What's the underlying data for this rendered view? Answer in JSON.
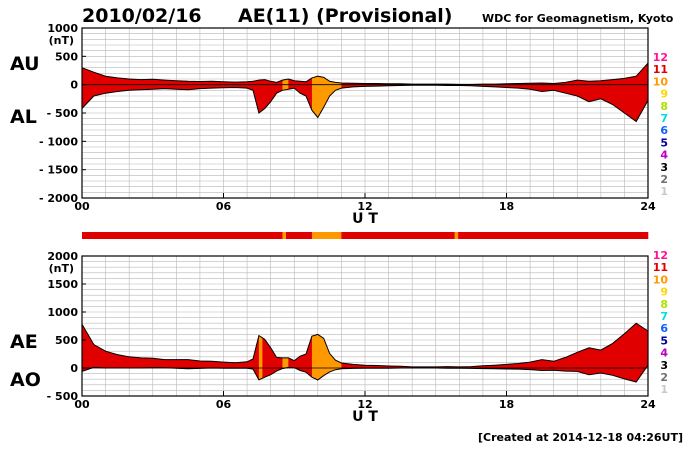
{
  "header": {
    "date": "2010/02/16",
    "title": "AE(11) (Provisional)",
    "source": "WDC for Geomagnetism, Kyoto"
  },
  "footer": {
    "created": "[Created at 2014-12-18 04:26UT]"
  },
  "colors": {
    "count_12": "#ff1493",
    "count_11": "#e00000",
    "count_10": "#ff9900",
    "count_9": "#ffd700",
    "count_8": "#b0e000",
    "count_7": "#00e0e0",
    "count_6": "#1060ff",
    "count_5": "#0000a0",
    "count_4": "#c000c0",
    "count_3": "#000000",
    "count_2": "#707070",
    "count_1": "#c8c8c8",
    "fill_main": "#ff3311",
    "fill_alt": "#ff9900"
  },
  "legend": [
    "12",
    "11",
    "10",
    "9",
    "8",
    "7",
    "6",
    "5",
    "4",
    "3",
    "2",
    "1"
  ],
  "chart_data": [
    {
      "type": "area",
      "panel": "AU/AL",
      "ylabel_unit": "(nT)",
      "labels": {
        "upper": "AU",
        "lower": "AL"
      },
      "xlabel": "U T",
      "xlim": [
        0,
        24
      ],
      "ylim": [
        -2000,
        1000
      ],
      "xticks": [
        "00",
        "06",
        "12",
        "18",
        "24"
      ],
      "yticks": [
        "1000",
        "500",
        "0",
        "- 500",
        "- 1000",
        "- 1500",
        "- 2000"
      ],
      "yticks_values": [
        1000,
        500,
        0,
        -500,
        -1000,
        -1500,
        -2000
      ],
      "grid": true,
      "series": [
        {
          "name": "AU",
          "x": [
            0,
            0.5,
            1,
            1.5,
            2,
            2.5,
            3,
            3.5,
            4,
            4.5,
            5,
            5.5,
            6,
            6.5,
            7,
            7.25,
            7.5,
            7.75,
            8,
            8.25,
            8.5,
            8.75,
            9,
            9.25,
            9.5,
            9.75,
            10,
            10.25,
            10.5,
            10.75,
            11,
            11.5,
            12,
            12.5,
            13,
            13.5,
            14,
            14.5,
            15,
            15.5,
            16,
            16.5,
            17,
            17.5,
            18,
            18.5,
            19,
            19.5,
            20,
            20.5,
            21,
            21.5,
            22,
            22.5,
            23,
            23.5,
            24
          ],
          "values": [
            300,
            220,
            150,
            120,
            100,
            90,
            95,
            80,
            70,
            60,
            55,
            60,
            50,
            45,
            50,
            60,
            80,
            90,
            60,
            40,
            80,
            100,
            70,
            60,
            50,
            120,
            150,
            130,
            60,
            40,
            30,
            25,
            20,
            20,
            15,
            15,
            10,
            10,
            10,
            10,
            5,
            5,
            10,
            10,
            15,
            20,
            25,
            30,
            20,
            40,
            80,
            60,
            70,
            90,
            110,
            150,
            380
          ]
        },
        {
          "name": "AL",
          "x": [
            0,
            0.5,
            1,
            1.5,
            2,
            2.5,
            3,
            3.5,
            4,
            4.5,
            5,
            5.5,
            6,
            6.5,
            7,
            7.25,
            7.5,
            7.75,
            8,
            8.25,
            8.5,
            8.75,
            9,
            9.25,
            9.5,
            9.75,
            10,
            10.25,
            10.5,
            10.75,
            11,
            11.5,
            12,
            12.5,
            13,
            13.5,
            14,
            14.5,
            15,
            15.5,
            16,
            16.5,
            17,
            17.5,
            18,
            18.5,
            19,
            19.5,
            20,
            20.5,
            21,
            21.5,
            22,
            22.5,
            23,
            23.5,
            24
          ],
          "values": [
            -420,
            -200,
            -150,
            -120,
            -100,
            -90,
            -80,
            -70,
            -80,
            -90,
            -70,
            -60,
            -55,
            -50,
            -60,
            -100,
            -500,
            -420,
            -300,
            -150,
            -100,
            -80,
            -60,
            -150,
            -200,
            -450,
            -580,
            -400,
            -200,
            -100,
            -60,
            -40,
            -30,
            -25,
            -20,
            -15,
            -10,
            -10,
            -10,
            -15,
            -15,
            -20,
            -30,
            -40,
            -50,
            -60,
            -80,
            -120,
            -100,
            -150,
            -200,
            -300,
            -250,
            -350,
            -500,
            -650,
            -280
          ]
        }
      ],
      "count_bar": [
        {
          "from": 0,
          "to": 8.5,
          "count": 11
        },
        {
          "from": 8.5,
          "to": 8.75,
          "count": 10
        },
        {
          "from": 8.75,
          "to": 9.75,
          "count": 11
        },
        {
          "from": 9.75,
          "to": 11,
          "count": 10
        },
        {
          "from": 11,
          "to": 15.75,
          "count": 11
        },
        {
          "from": 15.75,
          "to": 15.95,
          "count": 10
        },
        {
          "from": 15.95,
          "to": 24,
          "count": 11
        }
      ]
    },
    {
      "type": "area",
      "panel": "AE/AO",
      "ylabel_unit": "(nT)",
      "labels": {
        "upper": "AE",
        "lower": "AO"
      },
      "xlabel": "U T",
      "xlim": [
        0,
        24
      ],
      "ylim": [
        -500,
        2000
      ],
      "xticks": [
        "00",
        "06",
        "12",
        "18",
        "24"
      ],
      "yticks": [
        "2000",
        "1500",
        "1000",
        "500",
        "0",
        "- 500"
      ],
      "yticks_values": [
        2000,
        1500,
        1000,
        500,
        0,
        -500
      ],
      "grid": true,
      "series": [
        {
          "name": "AE",
          "x": [
            0,
            0.5,
            1,
            1.5,
            2,
            2.5,
            3,
            3.5,
            4,
            4.5,
            5,
            5.5,
            6,
            6.5,
            7,
            7.25,
            7.5,
            7.75,
            8,
            8.25,
            8.5,
            8.75,
            9,
            9.25,
            9.5,
            9.75,
            10,
            10.25,
            10.5,
            10.75,
            11,
            11.5,
            12,
            12.5,
            13,
            13.5,
            14,
            14.5,
            15,
            15.5,
            16,
            16.5,
            17,
            17.5,
            18,
            18.5,
            19,
            19.5,
            20,
            20.5,
            21,
            21.5,
            22,
            22.5,
            23,
            23.5,
            24
          ],
          "values": [
            780,
            420,
            300,
            240,
            200,
            180,
            175,
            150,
            150,
            150,
            125,
            120,
            105,
            95,
            110,
            160,
            580,
            510,
            360,
            190,
            180,
            180,
            130,
            210,
            250,
            570,
            600,
            530,
            260,
            140,
            90,
            65,
            50,
            45,
            35,
            30,
            20,
            20,
            20,
            25,
            20,
            25,
            40,
            50,
            65,
            80,
            105,
            150,
            120,
            190,
            280,
            360,
            320,
            440,
            610,
            800,
            660
          ]
        },
        {
          "name": "AO",
          "x": [
            0,
            0.5,
            1,
            1.5,
            2,
            2.5,
            3,
            3.5,
            4,
            4.5,
            5,
            5.5,
            6,
            6.5,
            7,
            7.25,
            7.5,
            7.75,
            8,
            8.25,
            8.5,
            8.75,
            9,
            9.25,
            9.5,
            9.75,
            10,
            10.25,
            10.5,
            10.75,
            11,
            11.5,
            12,
            12.5,
            13,
            13.5,
            14,
            14.5,
            15,
            15.5,
            16,
            16.5,
            17,
            17.5,
            18,
            18.5,
            19,
            19.5,
            20,
            20.5,
            21,
            21.5,
            22,
            22.5,
            23,
            23.5,
            24
          ],
          "values": [
            -60,
            10,
            0,
            0,
            0,
            0,
            8,
            5,
            -5,
            -15,
            -8,
            0,
            -3,
            -3,
            -5,
            -20,
            -210,
            -165,
            -120,
            -55,
            -10,
            10,
            5,
            -45,
            -75,
            -165,
            -215,
            -135,
            -70,
            -30,
            -15,
            -8,
            -5,
            -3,
            -3,
            0,
            0,
            0,
            0,
            -3,
            -5,
            -8,
            -10,
            -15,
            -18,
            -20,
            -28,
            -45,
            -40,
            -55,
            -60,
            -120,
            -90,
            -130,
            -195,
            -250,
            50
          ]
        }
      ],
      "count_bar": [
        {
          "from": 0,
          "to": 7.5,
          "count": 11
        },
        {
          "from": 7.5,
          "to": 7.65,
          "count": 10
        },
        {
          "from": 7.65,
          "to": 8.5,
          "count": 11
        },
        {
          "from": 8.5,
          "to": 8.75,
          "count": 10
        },
        {
          "from": 8.75,
          "to": 9.75,
          "count": 11
        },
        {
          "from": 9.75,
          "to": 11,
          "count": 10
        },
        {
          "from": 11,
          "to": 24,
          "count": 11
        }
      ]
    }
  ],
  "status_bar": {
    "segments": [
      {
        "from": 0,
        "to": 8.5,
        "count": 11
      },
      {
        "from": 8.5,
        "to": 8.65,
        "count": 10
      },
      {
        "from": 8.65,
        "to": 9.75,
        "count": 11
      },
      {
        "from": 9.75,
        "to": 11,
        "count": 10
      },
      {
        "from": 11,
        "to": 15.8,
        "count": 11
      },
      {
        "from": 15.8,
        "to": 15.95,
        "count": 10
      },
      {
        "from": 15.95,
        "to": 24,
        "count": 11
      }
    ]
  }
}
